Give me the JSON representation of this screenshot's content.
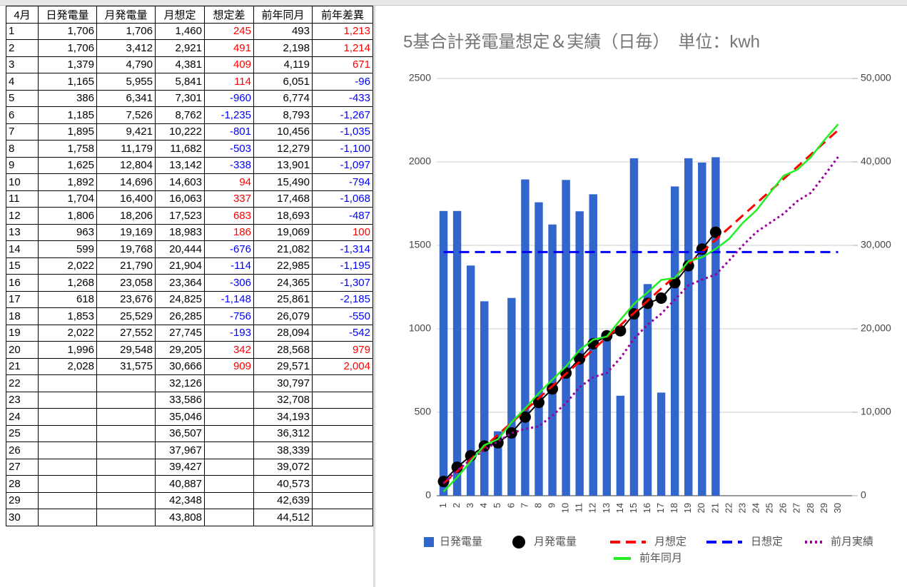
{
  "table": {
    "header": [
      "4月",
      "日発電量",
      "月発電量",
      "月想定",
      "想定差",
      "前年同月",
      "前年差異"
    ],
    "rows": [
      [
        "1",
        "1,706",
        "1,706",
        "1,460",
        "245",
        "493",
        "1,213"
      ],
      [
        "2",
        "1,706",
        "3,412",
        "2,921",
        "491",
        "2,198",
        "1,214"
      ],
      [
        "3",
        "1,379",
        "4,790",
        "4,381",
        "409",
        "4,119",
        "671"
      ],
      [
        "4",
        "1,165",
        "5,955",
        "5,841",
        "114",
        "6,051",
        "-96"
      ],
      [
        "5",
        "386",
        "6,341",
        "7,301",
        "-960",
        "6,774",
        "-433"
      ],
      [
        "6",
        "1,185",
        "7,526",
        "8,762",
        "-1,235",
        "8,793",
        "-1,267"
      ],
      [
        "7",
        "1,895",
        "9,421",
        "10,222",
        "-801",
        "10,456",
        "-1,035"
      ],
      [
        "8",
        "1,758",
        "11,179",
        "11,682",
        "-503",
        "12,279",
        "-1,100"
      ],
      [
        "9",
        "1,625",
        "12,804",
        "13,142",
        "-338",
        "13,901",
        "-1,097"
      ],
      [
        "10",
        "1,892",
        "14,696",
        "14,603",
        "94",
        "15,490",
        "-794"
      ],
      [
        "11",
        "1,704",
        "16,400",
        "16,063",
        "337",
        "17,468",
        "-1,068"
      ],
      [
        "12",
        "1,806",
        "18,206",
        "17,523",
        "683",
        "18,693",
        "-487"
      ],
      [
        "13",
        "963",
        "19,169",
        "18,983",
        "186",
        "19,069",
        "100"
      ],
      [
        "14",
        "599",
        "19,768",
        "20,444",
        "-676",
        "21,082",
        "-1,314"
      ],
      [
        "15",
        "2,022",
        "21,790",
        "21,904",
        "-114",
        "22,985",
        "-1,195"
      ],
      [
        "16",
        "1,268",
        "23,058",
        "23,364",
        "-306",
        "24,365",
        "-1,307"
      ],
      [
        "17",
        "618",
        "23,676",
        "24,825",
        "-1,148",
        "25,861",
        "-2,185"
      ],
      [
        "18",
        "1,853",
        "25,529",
        "26,285",
        "-756",
        "26,079",
        "-550"
      ],
      [
        "19",
        "2,022",
        "27,552",
        "27,745",
        "-193",
        "28,094",
        "-542"
      ],
      [
        "20",
        "1,996",
        "29,548",
        "29,205",
        "342",
        "28,568",
        "979"
      ],
      [
        "21",
        "2,028",
        "31,575",
        "30,666",
        "909",
        "29,571",
        "2,004"
      ],
      [
        "22",
        null,
        null,
        "32,126",
        null,
        "30,797",
        null
      ],
      [
        "23",
        null,
        null,
        "33,586",
        null,
        "32,708",
        null
      ],
      [
        "24",
        null,
        null,
        "35,046",
        null,
        "34,193",
        null
      ],
      [
        "25",
        null,
        null,
        "36,507",
        null,
        "36,312",
        null
      ],
      [
        "26",
        null,
        null,
        "37,967",
        null,
        "38,339",
        null
      ],
      [
        "27",
        null,
        null,
        "39,427",
        null,
        "39,072",
        null
      ],
      [
        "28",
        null,
        null,
        "40,887",
        null,
        "40,573",
        null
      ],
      [
        "29",
        null,
        null,
        "42,348",
        null,
        "42,639",
        null
      ],
      [
        "30",
        null,
        null,
        "43,808",
        null,
        "44,512",
        null
      ]
    ]
  },
  "chart_data": {
    "type": "combo",
    "title": "5基合計発電量想定＆実績（日毎）　単位：kwh",
    "categories": [
      "1",
      "2",
      "3",
      "4",
      "5",
      "6",
      "7",
      "8",
      "9",
      "10",
      "11",
      "12",
      "13",
      "14",
      "15",
      "16",
      "17",
      "18",
      "19",
      "20",
      "21",
      "22",
      "23",
      "24",
      "25",
      "26",
      "27",
      "28",
      "29",
      "30"
    ],
    "ylim": [
      0,
      2500
    ],
    "yticks": [
      0,
      500,
      1000,
      1500,
      2000,
      2500
    ],
    "y2lim": [
      0,
      50000
    ],
    "y2ticks": [
      0,
      {
        "value": 10000,
        "label": "10,000"
      },
      {
        "value": 20000,
        "label": "20,000"
      },
      {
        "value": 30000,
        "label": "30,000"
      },
      {
        "value": 40000,
        "label": "40,000"
      },
      {
        "value": 50000,
        "label": "50,000"
      }
    ],
    "grid": true,
    "legend": "bottom",
    "series": [
      {
        "name": "日発電量",
        "style": "bar",
        "axis": "y",
        "color": "#3366cc",
        "values": [
          1706,
          1706,
          1379,
          1165,
          386,
          1185,
          1895,
          1758,
          1625,
          1892,
          1704,
          1806,
          963,
          599,
          2022,
          1268,
          618,
          1853,
          2022,
          1996,
          2028,
          null,
          null,
          null,
          null,
          null,
          null,
          null,
          null,
          null
        ]
      },
      {
        "name": "月発電量",
        "style": "line-marker",
        "axis": "y2",
        "color": "#000000",
        "values": [
          1706,
          3412,
          4790,
          5955,
          6341,
          7526,
          9421,
          11179,
          12804,
          14696,
          16400,
          18206,
          19169,
          19768,
          21790,
          23058,
          23676,
          25529,
          27552,
          29548,
          31575,
          null,
          null,
          null,
          null,
          null,
          null,
          null,
          null,
          null
        ]
      },
      {
        "name": "月想定",
        "style": "dashed",
        "axis": "y2",
        "color": "#ff0000",
        "values": [
          1460,
          2921,
          4381,
          5841,
          7301,
          8762,
          10222,
          11682,
          13142,
          14603,
          16063,
          17523,
          18983,
          20444,
          21904,
          23364,
          24825,
          26285,
          27745,
          29205,
          30666,
          32126,
          33586,
          35046,
          36507,
          37967,
          39427,
          40887,
          42348,
          43808
        ]
      },
      {
        "name": "日想定",
        "style": "dashed",
        "axis": "y",
        "color": "#0000ff",
        "values": [
          1460,
          1460,
          1460,
          1460,
          1460,
          1460,
          1460,
          1460,
          1460,
          1460,
          1460,
          1460,
          1460,
          1460,
          1460,
          1460,
          1460,
          1460,
          1460,
          1460,
          1460,
          1460,
          1460,
          1460,
          1460,
          1460,
          1460,
          1460,
          1460,
          1460
        ]
      },
      {
        "name": "前月実績",
        "style": "dotted",
        "axis": "y2",
        "color": "#990099",
        "values": [
          1500,
          3000,
          4300,
          5500,
          6500,
          7500,
          8000,
          8300,
          9600,
          11100,
          13000,
          14200,
          14700,
          16500,
          18800,
          20500,
          21800,
          23500,
          25200,
          25900,
          26500,
          28200,
          30000,
          31600,
          32700,
          33800,
          35300,
          36300,
          38400,
          40600
        ]
      },
      {
        "name": "前年同月",
        "style": "line",
        "axis": "y2",
        "color": "#22ee22",
        "values": [
          493,
          2198,
          4119,
          6051,
          6774,
          8793,
          10456,
          12279,
          13901,
          15490,
          17468,
          18693,
          19069,
          21082,
          22985,
          24365,
          25861,
          26079,
          28094,
          28568,
          29571,
          30797,
          32708,
          34193,
          36312,
          38339,
          39072,
          40573,
          42639,
          44512
        ]
      }
    ]
  }
}
